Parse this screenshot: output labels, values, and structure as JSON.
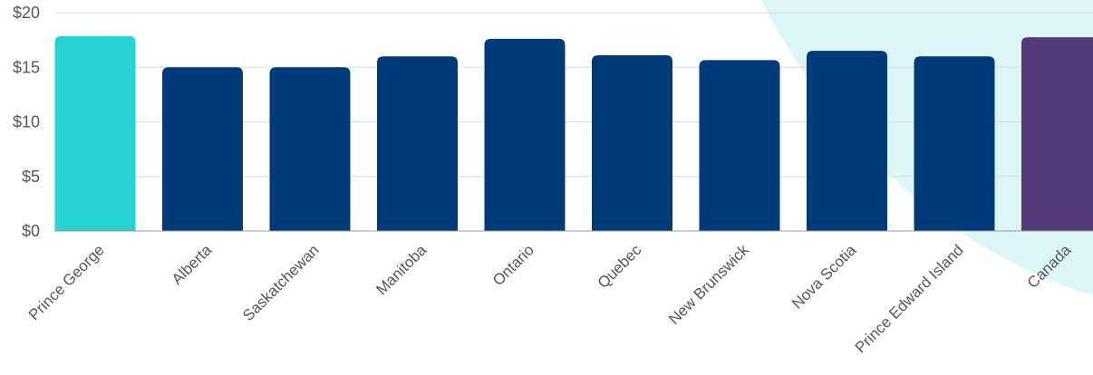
{
  "chart_data": {
    "type": "bar",
    "title": "",
    "xlabel": "",
    "ylabel": "",
    "categories": [
      "Prince George",
      "Alberta",
      "Saskatchewan",
      "Manitoba",
      "Ontario",
      "Quebec",
      "New Brunswick",
      "Nova Scotia",
      "Prince Edward Island",
      "Canada"
    ],
    "values": [
      17.85,
      15.0,
      15.0,
      16.0,
      17.6,
      16.1,
      15.65,
      16.5,
      16.0,
      17.75
    ],
    "ylim": [
      0,
      20
    ],
    "yticks": [
      0,
      5,
      10,
      15,
      20
    ],
    "ytick_labels": [
      "$0",
      "$5",
      "$10",
      "$15",
      "$20"
    ],
    "grid": true,
    "colors": {
      "highlight": "#27d3d3",
      "default": "#003a79",
      "national": "#533a78",
      "background_shape": "#ddf6f7"
    },
    "bar_colors": [
      "highlight",
      "default",
      "default",
      "default",
      "default",
      "default",
      "default",
      "default",
      "default",
      "national"
    ]
  }
}
